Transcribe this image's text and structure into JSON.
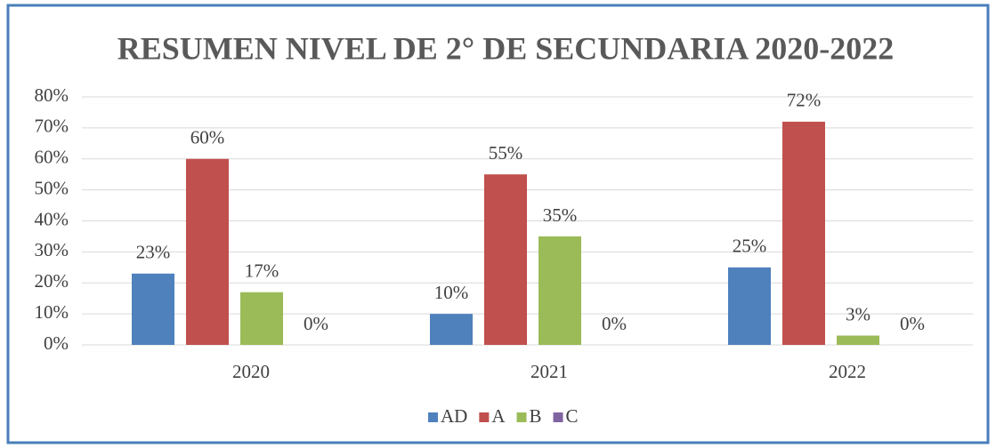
{
  "chart_data": {
    "type": "bar",
    "title": "RESUMEN NIVEL DE 2° DE SECUNDARIA 2020-2022",
    "categories": [
      "2020",
      "2021",
      "2022"
    ],
    "series": [
      {
        "name": "AD",
        "color": "#4f81bd",
        "values": [
          23,
          10,
          25
        ],
        "value_labels": [
          "23%",
          "10%",
          "25%"
        ]
      },
      {
        "name": "A",
        "color": "#c0504d",
        "values": [
          60,
          55,
          72
        ],
        "value_labels": [
          "60%",
          "55%",
          "72%"
        ]
      },
      {
        "name": "B",
        "color": "#9bbb59",
        "values": [
          17,
          35,
          3
        ],
        "value_labels": [
          "17%",
          "35%",
          "3%"
        ]
      },
      {
        "name": "C",
        "color": "#8064a2",
        "values": [
          0,
          0,
          0
        ],
        "value_labels": [
          "0%",
          "0%",
          "0%"
        ]
      }
    ],
    "ylim": [
      0,
      80
    ],
    "yticks": [
      {
        "value": 0,
        "label": "0%"
      },
      {
        "value": 10,
        "label": "10%"
      },
      {
        "value": 20,
        "label": "20%"
      },
      {
        "value": 30,
        "label": "30%"
      },
      {
        "value": 40,
        "label": "40%"
      },
      {
        "value": 50,
        "label": "50%"
      },
      {
        "value": 60,
        "label": "60%"
      },
      {
        "value": 70,
        "label": "70%"
      },
      {
        "value": 80,
        "label": "80%"
      }
    ],
    "grid": true,
    "legend": "bottom"
  }
}
